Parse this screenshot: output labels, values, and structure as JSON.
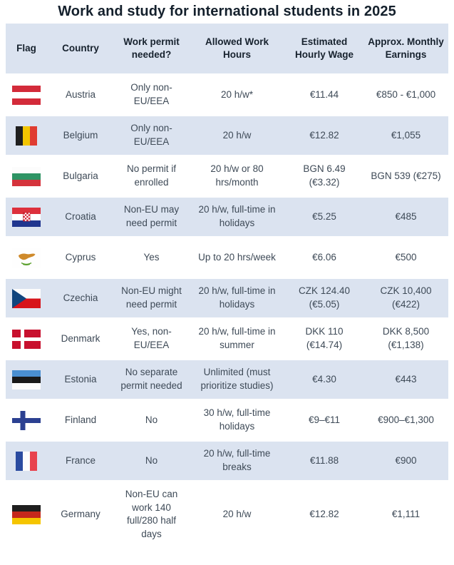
{
  "title": "Work and study for international students in 2025",
  "colors": {
    "band_bg": "#dbe3f0",
    "page_bg": "#ffffff",
    "title_text": "#14202c",
    "body_text": "#3e4a57"
  },
  "table": {
    "columns": [
      {
        "label": "Flag"
      },
      {
        "label": "Country"
      },
      {
        "label": "Work permit needed?"
      },
      {
        "label": "Allowed Work Hours"
      },
      {
        "label": "Estimated Hourly Wage"
      },
      {
        "label": "Approx. Monthly Earnings"
      }
    ],
    "rows": [
      {
        "flag_icon": "austria-flag-icon",
        "country": "Austria",
        "permit": "Only non-EU/EEA",
        "hours": "20 h/w*",
        "wage": "€11.44",
        "earnings": "€850 - €1,000"
      },
      {
        "flag_icon": "belgium-flag-icon",
        "country": "Belgium",
        "permit": "Only non-EU/EEA",
        "hours": "20 h/w",
        "wage": "€12.82",
        "earnings": "€1,055"
      },
      {
        "flag_icon": "bulgaria-flag-icon",
        "country": "Bulgaria",
        "permit": "No permit if enrolled",
        "hours": "20 h/w or 80 hrs/month",
        "wage": "BGN 6.49 (€3.32)",
        "earnings": "BGN 539 (€275)"
      },
      {
        "flag_icon": "croatia-flag-icon",
        "country": "Croatia",
        "permit": "Non-EU may need permit",
        "hours": "20 h/w, full-time in holidays",
        "wage": "€5.25",
        "earnings": "€485"
      },
      {
        "flag_icon": "cyprus-flag-icon",
        "country": "Cyprus",
        "permit": "Yes",
        "hours": "Up to 20 hrs/week",
        "wage": "€6.06",
        "earnings": "€500"
      },
      {
        "flag_icon": "czechia-flag-icon",
        "country": "Czechia",
        "permit": "Non-EU might need permit",
        "hours": "20 h/w, full-time in holidays",
        "wage": "CZK 124.40 (€5.05)",
        "earnings": "CZK 10,400 (€422)"
      },
      {
        "flag_icon": "denmark-flag-icon",
        "country": "Denmark",
        "permit": "Yes, non-EU/EEA",
        "hours": "20 h/w, full-time in summer",
        "wage": "DKK 110 (€14.74)",
        "earnings": "DKK 8,500 (€1,138)"
      },
      {
        "flag_icon": "estonia-flag-icon",
        "country": "Estonia",
        "permit": "No separate permit needed",
        "hours": "Unlimited (must prioritize studies)",
        "wage": "€4.30",
        "earnings": "€443"
      },
      {
        "flag_icon": "finland-flag-icon",
        "country": "Finland",
        "permit": "No",
        "hours": "30 h/w, full-time holidays",
        "wage": "€9–€11",
        "earnings": "€900–€1,300"
      },
      {
        "flag_icon": "france-flag-icon",
        "country": "France",
        "permit": "No",
        "hours": "20 h/w, full-time breaks",
        "wage": "€11.88",
        "earnings": "€900"
      },
      {
        "flag_icon": "germany-flag-icon",
        "country": "Germany",
        "permit": "Non-EU can work 140 full/280 half days",
        "hours": "20 h/w",
        "wage": "€12.82",
        "earnings": "€1,111"
      }
    ]
  }
}
